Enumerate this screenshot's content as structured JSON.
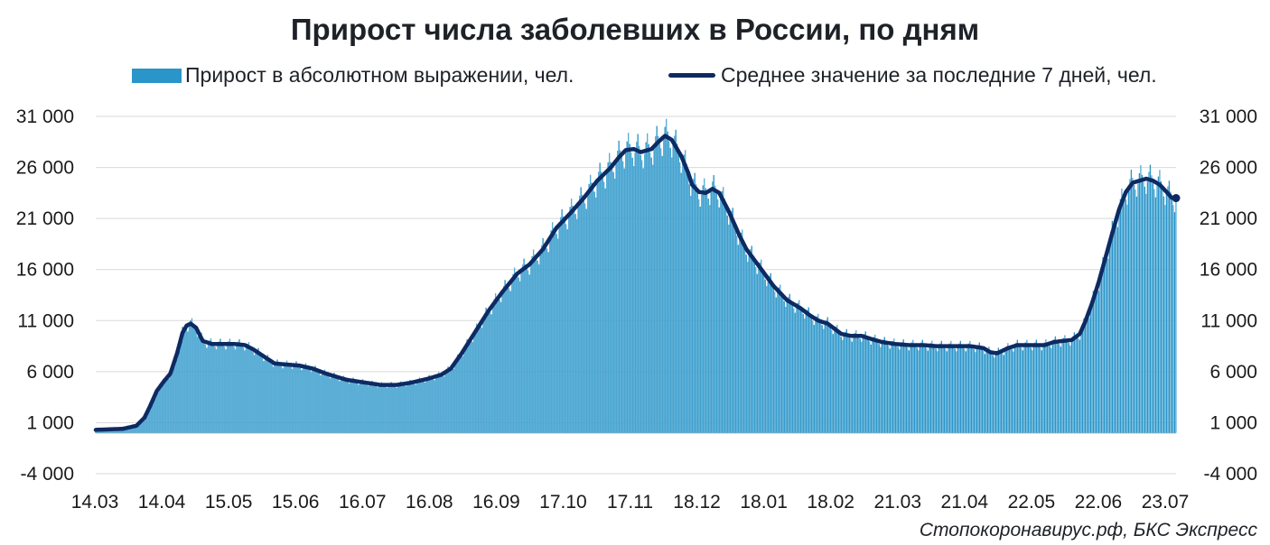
{
  "chart_data": {
    "type": "bar",
    "title": "Прирост числа заболевших в России, по дням",
    "series": [
      {
        "name": "Прирост в абсолютном выражении, чел.",
        "kind": "bar",
        "color": "#2a95c9"
      },
      {
        "name": "Среднее значение за последние 7 дней, чел.",
        "kind": "line",
        "color": "#0e2a62"
      }
    ],
    "x_tick_labels": [
      "14.03",
      "14.04",
      "15.05",
      "15.06",
      "16.07",
      "16.08",
      "16.09",
      "17.10",
      "17.11",
      "18.12",
      "18.01",
      "18.02",
      "21.03",
      "21.04",
      "22.05",
      "22.06",
      "23.07"
    ],
    "y_tick_labels": [
      "31 000",
      "26 000",
      "21 000",
      "16 000",
      "11 000",
      "6 000",
      "1 000",
      "-4 000"
    ],
    "ylim": [
      -4000,
      31000
    ],
    "grid": true,
    "legend_position": "top",
    "avg_7d_points": [
      [
        0,
        300
      ],
      [
        20,
        400
      ],
      [
        30,
        700
      ],
      [
        36,
        1500
      ],
      [
        40,
        2600
      ],
      [
        45,
        4100
      ],
      [
        50,
        5000
      ],
      [
        55,
        5800
      ],
      [
        60,
        7800
      ],
      [
        64,
        9800
      ],
      [
        67,
        10500
      ],
      [
        70,
        10700
      ],
      [
        74,
        10300
      ],
      [
        79,
        9000
      ],
      [
        86,
        8700
      ],
      [
        95,
        8700
      ],
      [
        103,
        8700
      ],
      [
        110,
        8600
      ],
      [
        116,
        8200
      ],
      [
        125,
        7400
      ],
      [
        132,
        6800
      ],
      [
        140,
        6700
      ],
      [
        150,
        6600
      ],
      [
        160,
        6300
      ],
      [
        170,
        5800
      ],
      [
        185,
        5200
      ],
      [
        200,
        4900
      ],
      [
        210,
        4700
      ],
      [
        222,
        4700
      ],
      [
        232,
        4900
      ],
      [
        245,
        5300
      ],
      [
        255,
        5700
      ],
      [
        262,
        6300
      ],
      [
        270,
        7800
      ],
      [
        280,
        9900
      ],
      [
        290,
        12000
      ],
      [
        300,
        13800
      ],
      [
        311,
        15600
      ],
      [
        320,
        16500
      ],
      [
        330,
        18000
      ],
      [
        340,
        20100
      ],
      [
        350,
        21500
      ],
      [
        360,
        23000
      ],
      [
        370,
        24700
      ],
      [
        380,
        26000
      ],
      [
        386,
        27000
      ],
      [
        391,
        27700
      ],
      [
        397,
        27800
      ],
      [
        402,
        27500
      ],
      [
        410,
        27800
      ],
      [
        415,
        28500
      ],
      [
        420,
        29100
      ],
      [
        425,
        28700
      ],
      [
        432,
        27100
      ],
      [
        437,
        25500
      ],
      [
        440,
        24300
      ],
      [
        445,
        23600
      ],
      [
        450,
        23500
      ],
      [
        455,
        23900
      ],
      [
        460,
        23500
      ],
      [
        467,
        21700
      ],
      [
        475,
        19300
      ],
      [
        480,
        18000
      ],
      [
        490,
        16200
      ],
      [
        500,
        14400
      ],
      [
        510,
        13000
      ],
      [
        520,
        12200
      ],
      [
        527,
        11500
      ],
      [
        533,
        11000
      ],
      [
        540,
        10700
      ],
      [
        545,
        10200
      ],
      [
        550,
        9700
      ],
      [
        557,
        9500
      ],
      [
        565,
        9500
      ],
      [
        572,
        9200
      ],
      [
        580,
        8900
      ],
      [
        590,
        8700
      ],
      [
        600,
        8600
      ],
      [
        610,
        8600
      ],
      [
        620,
        8500
      ],
      [
        630,
        8500
      ],
      [
        645,
        8500
      ],
      [
        655,
        8300
      ],
      [
        660,
        7900
      ],
      [
        665,
        7800
      ],
      [
        673,
        8300
      ],
      [
        680,
        8600
      ],
      [
        690,
        8600
      ],
      [
        700,
        8600
      ],
      [
        707,
        8900
      ],
      [
        713,
        9000
      ],
      [
        720,
        9100
      ],
      [
        726,
        9700
      ],
      [
        730,
        10900
      ],
      [
        735,
        12700
      ],
      [
        740,
        14800
      ],
      [
        745,
        17200
      ],
      [
        750,
        19600
      ],
      [
        755,
        21900
      ],
      [
        760,
        23600
      ],
      [
        765,
        24500
      ],
      [
        770,
        24700
      ],
      [
        775,
        24900
      ],
      [
        780,
        24700
      ],
      [
        785,
        24300
      ],
      [
        790,
        23600
      ],
      [
        794,
        23000
      ],
      [
        797,
        23000
      ]
    ]
  },
  "source": "Стопокоронавирус.рф, БКС Экспресс"
}
